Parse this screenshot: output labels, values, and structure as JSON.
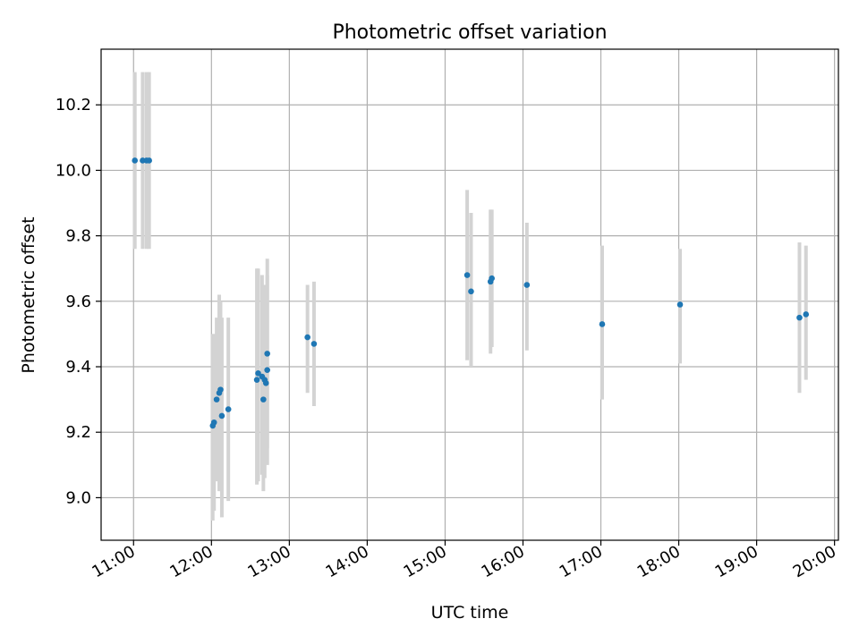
{
  "chart_data": {
    "type": "scatter",
    "title": "Photometric offset variation",
    "xlabel": "UTC time",
    "ylabel": "Photometric offset",
    "x_tick_labels": [
      "11:00",
      "12:00",
      "13:00",
      "14:00",
      "15:00",
      "16:00",
      "17:00",
      "18:00",
      "19:00",
      "20:00"
    ],
    "y_tick_labels": [
      "9.0",
      "9.2",
      "9.4",
      "9.6",
      "9.8",
      "10.0",
      "10.2"
    ],
    "y_ticks": [
      9.0,
      9.2,
      9.4,
      9.6,
      9.8,
      10.0,
      10.2
    ],
    "xlim": [
      "10:35",
      "20:03"
    ],
    "ylim": [
      8.87,
      10.37
    ],
    "grid": true,
    "colors": {
      "marker": "#1f77b4",
      "errorbar": "#d3d3d3",
      "grid": "#b0b0b0"
    },
    "series": [
      {
        "points": [
          {
            "x": "11:01",
            "y": 10.03,
            "low": 9.76,
            "high": 10.3
          },
          {
            "x": "11:07",
            "y": 10.03,
            "low": 9.76,
            "high": 10.3
          },
          {
            "x": "11:10",
            "y": 10.03,
            "low": 9.76,
            "high": 10.3
          },
          {
            "x": "11:12",
            "y": 10.03,
            "low": 9.76,
            "high": 10.3
          },
          {
            "x": "12:01",
            "y": 9.22,
            "low": 8.93,
            "high": 9.5
          },
          {
            "x": "12:02",
            "y": 9.23,
            "low": 8.96,
            "high": 9.5
          },
          {
            "x": "12:04",
            "y": 9.3,
            "low": 9.05,
            "high": 9.55
          },
          {
            "x": "12:06",
            "y": 9.32,
            "low": 9.02,
            "high": 9.62
          },
          {
            "x": "12:07",
            "y": 9.33,
            "low": 9.05,
            "high": 9.6
          },
          {
            "x": "12:08",
            "y": 9.25,
            "low": 8.94,
            "high": 9.55
          },
          {
            "x": "12:13",
            "y": 9.27,
            "low": 8.99,
            "high": 9.55
          },
          {
            "x": "12:35",
            "y": 9.36,
            "low": 9.04,
            "high": 9.7
          },
          {
            "x": "12:36",
            "y": 9.38,
            "low": 9.05,
            "high": 9.7
          },
          {
            "x": "12:39",
            "y": 9.37,
            "low": 9.07,
            "high": 9.68
          },
          {
            "x": "12:40",
            "y": 9.3,
            "low": 9.02,
            "high": 9.55
          },
          {
            "x": "12:41",
            "y": 9.36,
            "low": 9.06,
            "high": 9.65
          },
          {
            "x": "12:42",
            "y": 9.35,
            "low": 9.12,
            "high": 9.6
          },
          {
            "x": "12:43",
            "y": 9.39,
            "low": 9.1,
            "high": 9.68
          },
          {
            "x": "12:43",
            "y": 9.44,
            "low": 9.15,
            "high": 9.73
          },
          {
            "x": "13:14",
            "y": 9.49,
            "low": 9.32,
            "high": 9.65
          },
          {
            "x": "13:19",
            "y": 9.47,
            "low": 9.28,
            "high": 9.66
          },
          {
            "x": "15:17",
            "y": 9.68,
            "low": 9.42,
            "high": 9.94
          },
          {
            "x": "15:20",
            "y": 9.63,
            "low": 9.4,
            "high": 9.87
          },
          {
            "x": "15:35",
            "y": 9.66,
            "low": 9.44,
            "high": 9.88
          },
          {
            "x": "15:36",
            "y": 9.67,
            "low": 9.46,
            "high": 9.88
          },
          {
            "x": "16:03",
            "y": 9.65,
            "low": 9.45,
            "high": 9.84
          },
          {
            "x": "17:01",
            "y": 9.53,
            "low": 9.3,
            "high": 9.77
          },
          {
            "x": "18:01",
            "y": 9.59,
            "low": 9.41,
            "high": 9.76
          },
          {
            "x": "19:33",
            "y": 9.55,
            "low": 9.32,
            "high": 9.78
          },
          {
            "x": "19:38",
            "y": 9.56,
            "low": 9.36,
            "high": 9.77
          }
        ]
      }
    ]
  }
}
